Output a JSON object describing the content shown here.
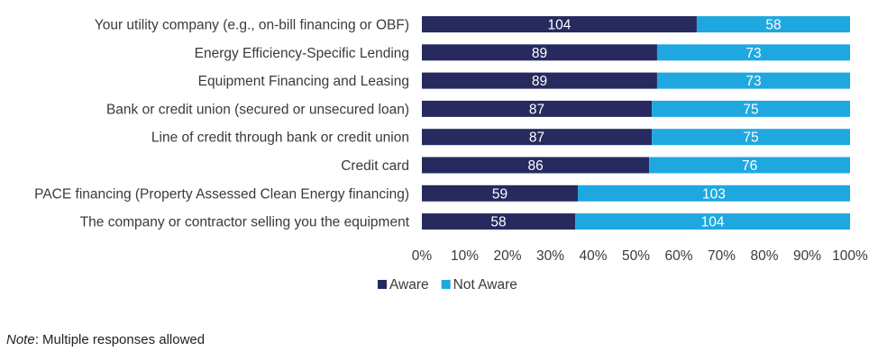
{
  "chart_data": {
    "type": "bar",
    "orientation": "horizontal",
    "stacked": "percent",
    "categories": [
      "Your utility company (e.g., on-bill financing or OBF)",
      "Energy Efficiency-Specific Lending",
      "Equipment Financing and Leasing",
      "Bank or credit union (secured or unsecured loan)",
      "Line of credit through bank or credit union",
      "Credit card",
      "PACE financing (Property Assessed Clean Energy financing)",
      "The company or contractor selling you the equipment"
    ],
    "series": [
      {
        "name": "Aware",
        "color": "#262a5e",
        "values": [
          104,
          89,
          89,
          87,
          87,
          86,
          59,
          58
        ]
      },
      {
        "name": "Not Aware",
        "color": "#1fa8e0",
        "values": [
          58,
          73,
          73,
          75,
          75,
          76,
          103,
          104
        ]
      }
    ],
    "xticks": [
      "0%",
      "10%",
      "20%",
      "30%",
      "40%",
      "50%",
      "60%",
      "70%",
      "80%",
      "90%",
      "100%"
    ],
    "xlim": [
      0,
      100
    ],
    "legend_position": "bottom-center",
    "grid": false
  },
  "note": {
    "prefix": "Note",
    "text": ": Multiple responses allowed"
  }
}
